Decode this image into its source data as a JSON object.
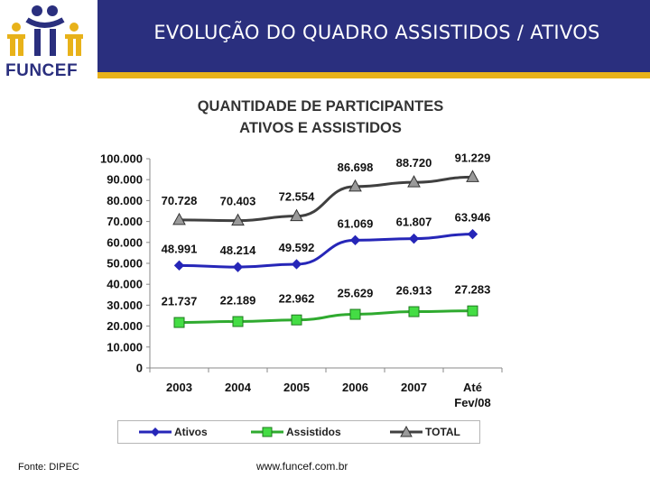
{
  "header": {
    "title": "EVOLUÇÃO DO QUADRO ASSISTIDOS / ATIVOS",
    "logo_text": "FUNCEF"
  },
  "colors": {
    "header_band": "#2a2f7e",
    "header_accent": "#e8b21a",
    "ativos": "#2626b8",
    "assistidos": "#2faa2f",
    "assistidos_marker": "#44dd44",
    "total": "#404040",
    "total_marker": "#9a9a9a"
  },
  "chart_data": {
    "type": "line",
    "title_lines": [
      "QUANTIDADE DE PARTICIPANTES",
      "ATIVOS E ASSISTIDOS"
    ],
    "categories": [
      [
        "2003"
      ],
      [
        "2004"
      ],
      [
        "2005"
      ],
      [
        "2006"
      ],
      [
        "2007"
      ],
      [
        "Até",
        "Fev/08"
      ]
    ],
    "ylim": [
      0,
      100000
    ],
    "yticks": [
      "100.000",
      "90.000",
      "80.000",
      "70.000",
      "60.000",
      "50.000",
      "40.000",
      "30.000",
      "20.000",
      "10.000",
      "0"
    ],
    "grid": false,
    "legend_position": "bottom",
    "series": [
      {
        "name": "Ativos",
        "marker": "diamond",
        "values": [
          48991,
          48214,
          49592,
          61069,
          61807,
          63946
        ],
        "labels": [
          "48.991",
          "48.214",
          "49.592",
          "61.069",
          "61.807",
          "63.946"
        ]
      },
      {
        "name": "Assistidos",
        "marker": "square",
        "values": [
          21737,
          22189,
          22962,
          25629,
          26913,
          27283
        ],
        "labels": [
          "21.737",
          "22.189",
          "22.962",
          "25.629",
          "26.913",
          "27.283"
        ]
      },
      {
        "name": "TOTAL",
        "marker": "triangle",
        "values": [
          70728,
          70403,
          72554,
          86698,
          88720,
          91229
        ],
        "labels": [
          "70.728",
          "70.403",
          "72.554",
          "86.698",
          "88.720",
          "91.229"
        ]
      }
    ]
  },
  "footer": {
    "source": "Fonte: DIPEC",
    "url": "www.funcef.com.br"
  }
}
